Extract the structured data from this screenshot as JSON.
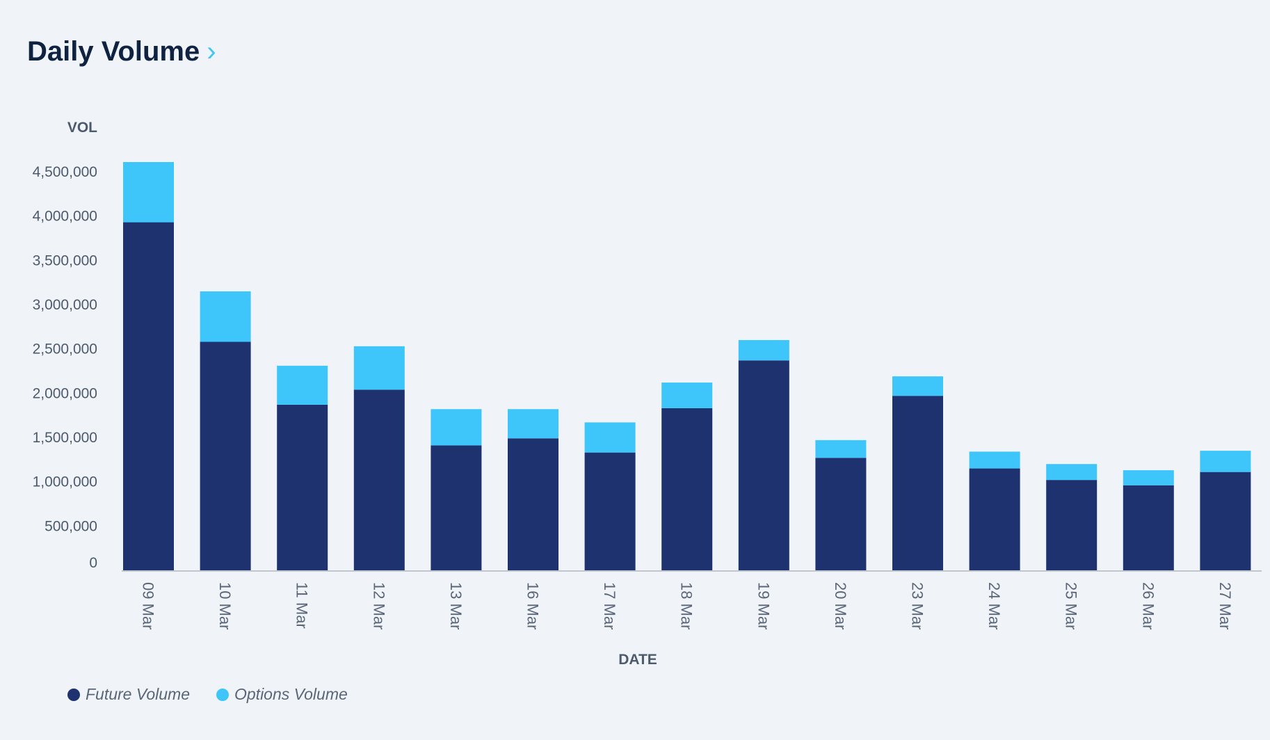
{
  "header": {
    "title": "Daily Volume",
    "chevron_icon": "chevron-right-icon"
  },
  "chart_data": {
    "type": "bar",
    "stacked": true,
    "title": "Daily Volume",
    "xlabel": "DATE",
    "ylabel": "VOL",
    "ylim": [
      0,
      4500000
    ],
    "yticks": [
      0,
      500000,
      1000000,
      1500000,
      2000000,
      2500000,
      3000000,
      3500000,
      4000000,
      4500000
    ],
    "ytick_labels": [
      "0",
      "500,000",
      "1,000,000",
      "1,500,000",
      "2,000,000",
      "2,500,000",
      "3,000,000",
      "3,500,000",
      "4,000,000",
      "4,500,000"
    ],
    "categories": [
      "09 Mar",
      "10 Mar",
      "11 Mar",
      "12 Mar",
      "13 Mar",
      "16 Mar",
      "17 Mar",
      "18 Mar",
      "19 Mar",
      "20 Mar",
      "23 Mar",
      "24 Mar",
      "25 Mar",
      "26 Mar",
      "27 Mar"
    ],
    "series": [
      {
        "name": "Future Volume",
        "color": "#1e3270",
        "values": [
          3930000,
          2580000,
          1870000,
          2040000,
          1410000,
          1490000,
          1330000,
          1830000,
          2370000,
          1270000,
          1970000,
          1150000,
          1020000,
          960000,
          1110000
        ]
      },
      {
        "name": "Options Volume",
        "color": "#3ec6fa",
        "values": [
          680000,
          570000,
          440000,
          490000,
          410000,
          330000,
          340000,
          290000,
          230000,
          200000,
          220000,
          190000,
          180000,
          170000,
          240000
        ]
      }
    ],
    "grid": false,
    "legend_position": "bottom-left"
  }
}
